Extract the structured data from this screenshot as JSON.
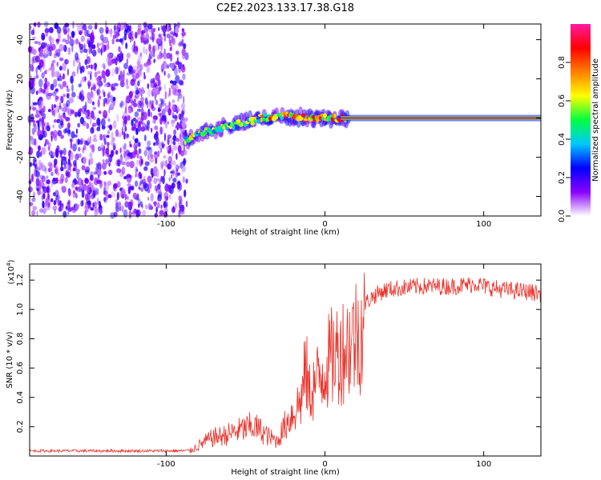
{
  "title": "C2E2.2023.133.17.38.G18",
  "colors": {
    "snr_line": "#e8322a",
    "spectrogram_noise": "#7a1ee8",
    "signal_peak": "#e8325a"
  },
  "chart_data": [
    {
      "type": "heatmap",
      "name": "spectrogram",
      "xlabel": "Height of straight line (km)",
      "ylabel": "Frequency (Hz)",
      "xlim": [
        -186,
        136
      ],
      "ylim": [
        -50,
        48
      ],
      "xticks": [
        -100,
        0,
        100
      ],
      "xtick_labels": [
        "-100",
        "0",
        "100"
      ],
      "yticks": [
        -40,
        -20,
        0,
        20,
        40
      ],
      "ytick_labels": [
        "-40",
        "-20",
        "0",
        "20",
        "40"
      ],
      "noise_region_x": [
        -186,
        -87
      ],
      "signal_track": {
        "x": [
          -88,
          -80,
          -70,
          -60,
          -50,
          -40,
          -30,
          -20,
          -10,
          0,
          10,
          20,
          40,
          60,
          80,
          100,
          120,
          136
        ],
        "y": [
          -12,
          -8,
          -6,
          -4,
          -2,
          0,
          1,
          0.5,
          0,
          0,
          0,
          0,
          0,
          0,
          0,
          0,
          0,
          0
        ]
      },
      "colorbar": {
        "label": "Normalized spectral amplitude",
        "range": [
          0,
          1
        ],
        "ticks": [
          0.0,
          0.2,
          0.4,
          0.6,
          0.8
        ],
        "tick_labels": [
          "0.0",
          "0.2",
          "0.4",
          "0.6",
          "0.8"
        ],
        "colormap": [
          "#ffffff",
          "#8a00ff",
          "#0000ff",
          "#00c8ff",
          "#00ff40",
          "#ffff00",
          "#ff8000",
          "#ff0000",
          "#ff1aa0"
        ]
      }
    },
    {
      "type": "line",
      "name": "snr",
      "xlabel": "Height of straight line (km)",
      "ylabel": "SNR (10 * v/v)",
      "y_scale_label": "(x10",
      "y_scale_exp": "4",
      "y_scale_suffix": ")",
      "xlim": [
        -186,
        136
      ],
      "ylim": [
        0,
        1.31
      ],
      "xticks": [
        -100,
        0,
        100
      ],
      "xtick_labels": [
        "-100",
        "0",
        "100"
      ],
      "yticks": [
        0.2,
        0.4,
        0.6,
        0.8,
        1.0,
        1.2
      ],
      "ytick_labels": [
        "0.2",
        "0.4",
        "0.6",
        "0.8",
        "1.0",
        "1.2"
      ],
      "x": [
        -186,
        -150,
        -120,
        -90,
        -85,
        -80,
        -75,
        -70,
        -65,
        -60,
        -55,
        -50,
        -45,
        -40,
        -35,
        -30,
        -25,
        -20,
        -15,
        -12,
        -10,
        -5,
        0,
        5,
        10,
        15,
        20,
        25,
        30,
        35,
        40,
        50,
        60,
        70,
        80,
        90,
        95,
        100,
        110,
        120,
        130,
        136
      ],
      "y": [
        0.035,
        0.035,
        0.035,
        0.035,
        0.04,
        0.08,
        0.12,
        0.15,
        0.16,
        0.18,
        0.2,
        0.22,
        0.24,
        0.2,
        0.15,
        0.12,
        0.25,
        0.35,
        0.45,
        0.7,
        0.5,
        0.6,
        0.72,
        0.8,
        0.85,
        0.9,
        0.98,
        1.05,
        1.1,
        1.13,
        1.15,
        1.16,
        1.17,
        1.17,
        1.17,
        1.18,
        1.19,
        1.17,
        1.15,
        1.14,
        1.13,
        1.12
      ]
    }
  ]
}
